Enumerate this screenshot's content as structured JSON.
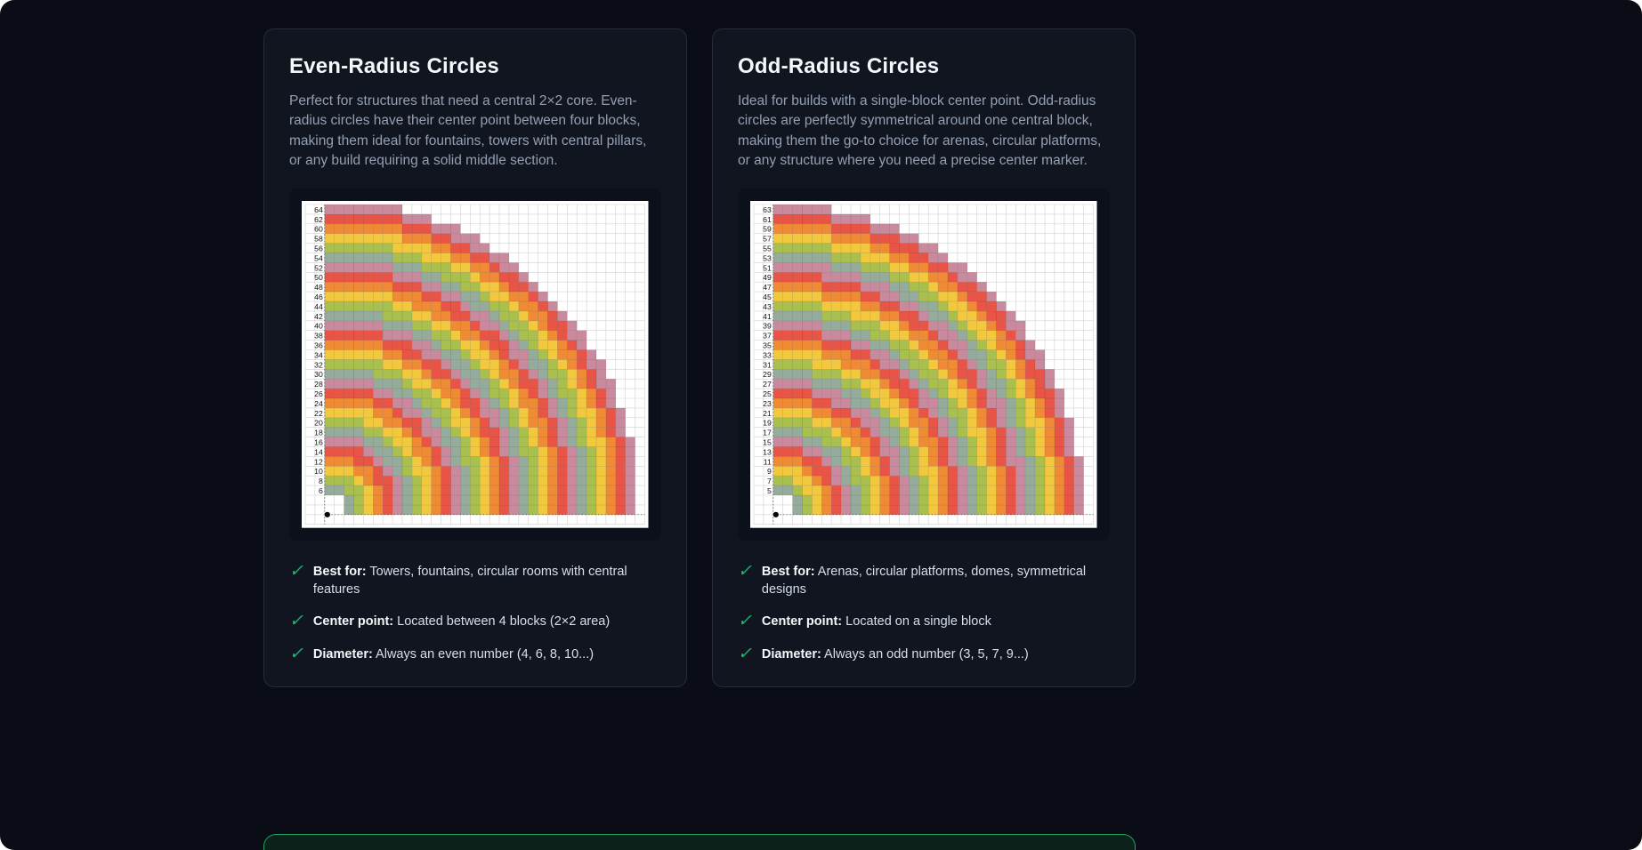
{
  "page": {
    "background": "#0a0d15"
  },
  "icons": {
    "check": "✓",
    "check_color": "#22b573"
  },
  "cards": [
    {
      "title": "Even-Radius Circles",
      "description": "Perfect for structures that need a central 2×2 core. Even-radius circles have their center point between four blocks, making them ideal for fountains, towers with central pillars, or any build requiring a solid middle section.",
      "features": [
        {
          "label": "Best for:",
          "text": "Towers, fountains, circular rooms with central features"
        },
        {
          "label": "Center point:",
          "text": "Located between 4 blocks (2×2 area)"
        },
        {
          "label": "Diameter:",
          "text": "Always an even number (4, 6, 8, 10...)"
        }
      ]
    },
    {
      "title": "Odd-Radius Circles",
      "description": "Ideal for builds with a single-block center point. Odd-radius circles are perfectly symmetrical around one central block, making them the go-to choice for arenas, circular platforms, or any structure where you need a precise center marker.",
      "features": [
        {
          "label": "Best for:",
          "text": "Arenas, circular platforms, domes, symmetrical designs"
        },
        {
          "label": "Center point:",
          "text": "Located on a single block"
        },
        {
          "label": "Diameter:",
          "text": "Always an odd number (3, 5, 7, 9...)"
        }
      ]
    }
  ],
  "next_section": {
    "border_color": "#1fa463",
    "background": "#0d211b"
  },
  "chart_data": [
    {
      "type": "heatmap",
      "title": "Even-radius quarter-circle block diagram",
      "parity": "even",
      "y_tick_labels": [
        64,
        62,
        60,
        58,
        56,
        54,
        52,
        50,
        48,
        46,
        44,
        42,
        40,
        38,
        36,
        34,
        32,
        30,
        28,
        26,
        24,
        22,
        20,
        18,
        16,
        14,
        12,
        10,
        8,
        6
      ],
      "diameters": [
        6,
        8,
        10,
        12,
        14,
        16,
        18,
        20,
        22,
        24,
        26,
        28,
        30,
        32,
        34,
        36,
        38,
        40,
        42,
        44,
        46,
        48,
        50,
        52,
        54,
        56,
        58,
        60,
        62,
        64
      ],
      "palette": [
        "#c98a9e",
        "#e85445",
        "#ef8a35",
        "#f2c83e",
        "#a9bf4e",
        "#95ab9c"
      ],
      "grid": true,
      "origin_marker": "black dot at bottom-left origin",
      "axis_style": "dashed axis lines at left and bottom of ring area"
    },
    {
      "type": "heatmap",
      "title": "Odd-radius quarter-circle block diagram",
      "parity": "odd",
      "y_tick_labels": [
        63,
        61,
        59,
        57,
        55,
        53,
        51,
        49,
        47,
        45,
        43,
        41,
        39,
        37,
        35,
        33,
        31,
        29,
        27,
        25,
        23,
        21,
        19,
        17,
        15,
        13,
        11,
        9,
        7,
        5
      ],
      "diameters": [
        5,
        7,
        9,
        11,
        13,
        15,
        17,
        19,
        21,
        23,
        25,
        27,
        29,
        31,
        33,
        35,
        37,
        39,
        41,
        43,
        45,
        47,
        49,
        51,
        53,
        55,
        57,
        59,
        61,
        63
      ],
      "palette": [
        "#c98a9e",
        "#e85445",
        "#ef8a35",
        "#f2c83e",
        "#a9bf4e",
        "#95ab9c"
      ],
      "grid": true,
      "origin_marker": "black dot on single center block at bottom-left",
      "axis_style": "dashed axis lines at left and bottom of ring area"
    }
  ]
}
